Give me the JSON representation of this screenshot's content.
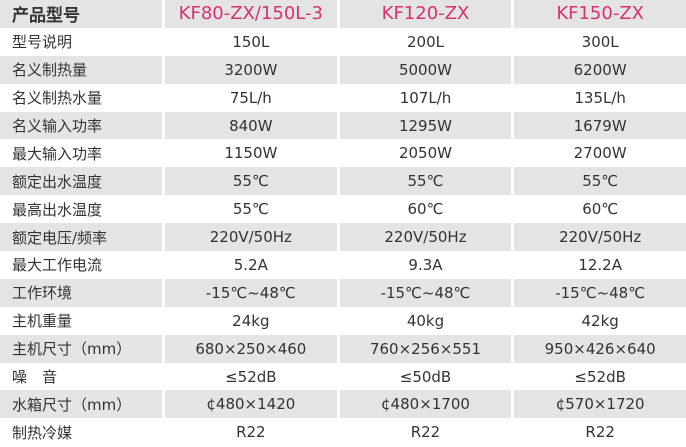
{
  "header": {
    "label": "产品型号",
    "models": [
      "KF80-ZX/150L-3",
      "KF120-ZX",
      "KF150-ZX"
    ]
  },
  "accent_color": "#d9306e",
  "rows": [
    {
      "label": "型号说明",
      "values": [
        "150L",
        "200L",
        "300L"
      ]
    },
    {
      "label": "名义制热量",
      "values": [
        "3200W",
        "5000W",
        "6200W"
      ]
    },
    {
      "label": "名义制热水量",
      "values": [
        "75L/h",
        "107L/h",
        "135L/h"
      ]
    },
    {
      "label": "名义输入功率",
      "values": [
        "840W",
        "1295W",
        "1679W"
      ]
    },
    {
      "label": "最大输入功率",
      "values": [
        "1150W",
        "2050W",
        "2700W"
      ]
    },
    {
      "label": "额定出水温度",
      "values": [
        "55℃",
        "55℃",
        "55℃"
      ]
    },
    {
      "label": "最高出水温度",
      "values": [
        "55℃",
        "60℃",
        "60℃"
      ]
    },
    {
      "label": "额定电压/频率",
      "values": [
        "220V/50Hz",
        "220V/50Hz",
        "220V/50Hz"
      ]
    },
    {
      "label": "最大工作电流",
      "values": [
        "5.2A",
        "9.3A",
        "12.2A"
      ]
    },
    {
      "label": "工作环境",
      "values": [
        "-15℃~48℃",
        "-15℃~48℃",
        "-15℃~48℃"
      ]
    },
    {
      "label": "主机重量",
      "values": [
        "24kg",
        "40kg",
        "42kg"
      ]
    },
    {
      "label": "主机尺寸（mm）",
      "values": [
        "680×250×460",
        "760×256×551",
        "950×426×640"
      ]
    },
    {
      "label": "噪　音",
      "values": [
        "≤52dB",
        "≤50dB",
        "≤52dB"
      ]
    },
    {
      "label": "水箱尺寸（mm）",
      "values": [
        "¢480×1420",
        "¢480×1700",
        "¢570×1720"
      ]
    },
    {
      "label": "制热冷媒",
      "values": [
        "R22",
        "R22",
        "R22"
      ]
    }
  ]
}
